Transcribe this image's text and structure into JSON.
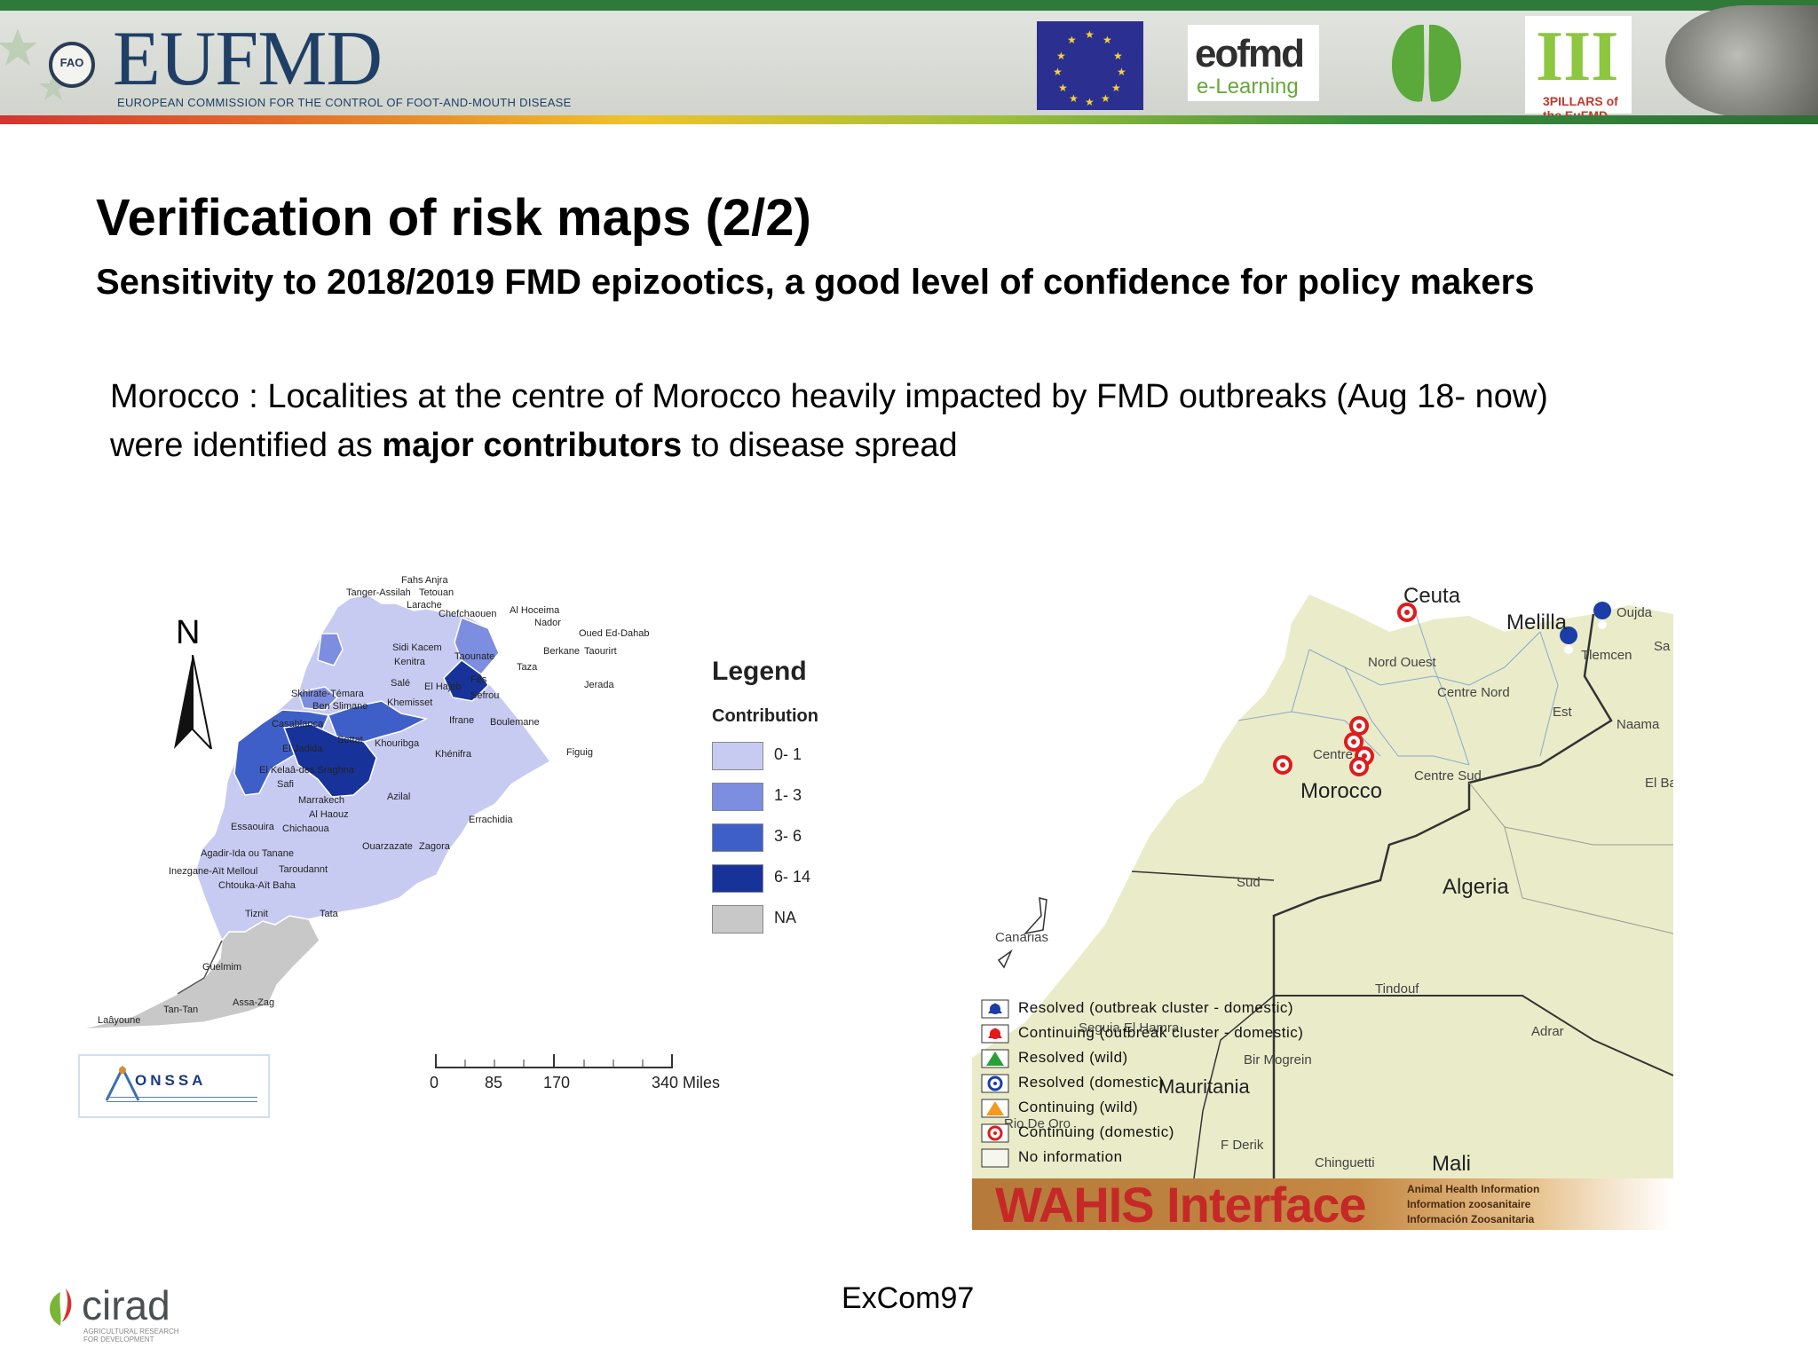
{
  "header": {
    "org_name": "EUFMD",
    "org_full": "EUROPEAN COMMISSION FOR THE CONTROL OF FOOT-AND-MOUTH DISEASE",
    "fao_text": "FAO",
    "logos": {
      "eofmd_name": "eofmd",
      "eofmd_sub": "e-Learning",
      "pillars_roman": "III",
      "pillars_text": "3PILLARS of the EuFMD"
    }
  },
  "slide": {
    "title": "Verification of risk maps (2/2)",
    "subtitle": "Sensitivity to 2018/2019 FMD epizootics, a good level of confidence for policy makers",
    "body_line1": "Morocco : Localities at the centre of Morocco heavily impacted by FMD outbreaks (Aug 18- now)",
    "body_line2_pre": "were identified as ",
    "body_line2_bold": "major contributors",
    "body_line2_post": " to disease spread"
  },
  "left_map": {
    "north": "N",
    "legend_title": "Legend",
    "legend_subtitle": "Contribution",
    "legend_items": [
      {
        "label": "0- 1",
        "color": "#c7cbf2"
      },
      {
        "label": "1- 3",
        "color": "#7d8ee0"
      },
      {
        "label": "3- 6",
        "color": "#3f5fc8"
      },
      {
        "label": "6- 14",
        "color": "#17339a"
      },
      {
        "label": "NA",
        "color": "#c8c8c8"
      }
    ],
    "scale_labels": [
      "0",
      "85",
      "170",
      "340 Miles"
    ],
    "region_labels": [
      "Fahs Anjra",
      "Tanger-Assilah",
      "Tetouan",
      "Larache",
      "Chefchaouen",
      "Al Hoceima",
      "Nador",
      "Oued Ed-Dahab",
      "Berkane",
      "Taourirt",
      "Sidi Kacem",
      "Kenitra",
      "Taounate",
      "Taza",
      "Jerada",
      "Skhirate-Témara",
      "Khemisset",
      "El Hajeb",
      "Fès",
      "Sefrou",
      "Ben Slimane",
      "Salé",
      "Casablanca",
      "Ifrane",
      "Boulemane",
      "El Jadida",
      "Settat",
      "Khouribga",
      "Khénifra",
      "Figuig",
      "El Kelaâ-des Sraghna",
      "Safi",
      "Marrakech",
      "Al Haouz",
      "Azilal",
      "Essaouira",
      "Chichaoua",
      "Errachidia",
      "Agadir-Ida ou Tanane",
      "Ouarzazate",
      "Zagora",
      "Inezgane-Aït Melloul",
      "Taroudannt",
      "Chtouka-Aït Baha",
      "Tiznit",
      "Tata",
      "Guelmim",
      "Tan-Tan",
      "Assa-Zag",
      "Laâyoune"
    ],
    "onssa_name": "ONSSA"
  },
  "right_map": {
    "country_labels": [
      "Ceuta",
      "Melilla",
      "Morocco",
      "Algeria",
      "Mali"
    ],
    "mauritania_label": "Mauritania",
    "region_labels": [
      "Nord Ouest",
      "Centre Nord",
      "Centre",
      "Centre Sud",
      "Sud",
      "Est",
      "Oujda",
      "Tlemcen",
      "Naama",
      "El Ba",
      "Sa",
      "Canarias",
      "Tindouf",
      "Adrar",
      "Seguia El Hamra",
      "Bir Mogrein",
      "F Derik",
      "Chinguetti",
      "Rio De Oro"
    ],
    "legend": [
      {
        "label": "Resolved (outbreak cluster - domestic)",
        "symbol": "blue-cluster"
      },
      {
        "label": "Continuing (outbreak cluster - domestic)",
        "symbol": "red-cluster"
      },
      {
        "label": "Resolved (wild)",
        "symbol": "green-triangle"
      },
      {
        "label": "Resolved (domestic)",
        "symbol": "blue-circle"
      },
      {
        "label": "Continuing (wild)",
        "symbol": "orange-triangle"
      },
      {
        "label": "Continuing (domestic)",
        "symbol": "red-circle"
      },
      {
        "label": "No information",
        "symbol": "empty-box"
      }
    ],
    "wahis_title": "WAHIS Interface",
    "wahis_side": [
      "Animal Health Information",
      "Information zoosanitaire",
      "Información Zoosanitaria"
    ]
  },
  "footer": {
    "cirad_name": "cirad",
    "cirad_sub": "AGRICULTURAL RESEARCH FOR DEVELOPMENT",
    "label": "ExCom97"
  }
}
